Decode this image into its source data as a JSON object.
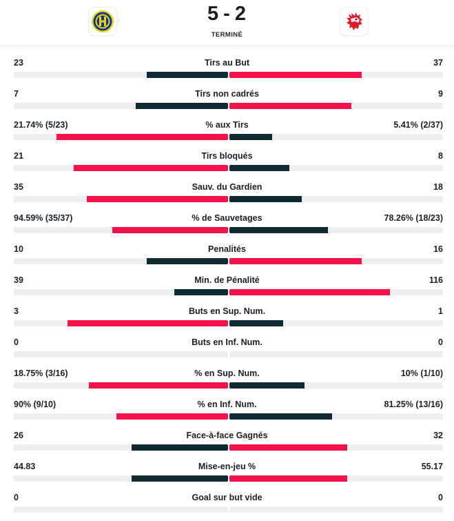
{
  "match": {
    "home_score": "5",
    "separator": "-",
    "away_score": "2",
    "status": "TERMINÉ"
  },
  "colors": {
    "leader": "#f5114a",
    "other": "#0f2a33",
    "track": "#eceef0"
  },
  "stats": [
    {
      "label": "Tirs au But",
      "home": "23",
      "away": "37",
      "home_fill": 0.38,
      "away_fill": 0.62,
      "home_leads": false
    },
    {
      "label": "Tirs non cadrés",
      "home": "7",
      "away": "9",
      "home_fill": 0.43,
      "away_fill": 0.57,
      "home_leads": false
    },
    {
      "label": "% aux Tirs",
      "home": "21.74% (5/23)",
      "away": "5.41% (2/37)",
      "home_fill": 0.8,
      "away_fill": 0.2,
      "home_leads": true
    },
    {
      "label": "Tirs bloqués",
      "home": "21",
      "away": "8",
      "home_fill": 0.72,
      "away_fill": 0.28,
      "home_leads": true
    },
    {
      "label": "Sauv. du Gardien",
      "home": "35",
      "away": "18",
      "home_fill": 0.66,
      "away_fill": 0.34,
      "home_leads": true
    },
    {
      "label": "% de Sauvetages",
      "home": "94.59% (35/37)",
      "away": "78.26% (18/23)",
      "home_fill": 0.54,
      "away_fill": 0.46,
      "home_leads": true
    },
    {
      "label": "Penalités",
      "home": "10",
      "away": "16",
      "home_fill": 0.38,
      "away_fill": 0.62,
      "home_leads": false
    },
    {
      "label": "Min. de Pénalité",
      "home": "39",
      "away": "116",
      "home_fill": 0.25,
      "away_fill": 0.75,
      "home_leads": false
    },
    {
      "label": "Buts en Sup. Num.",
      "home": "3",
      "away": "1",
      "home_fill": 0.75,
      "away_fill": 0.25,
      "home_leads": true
    },
    {
      "label": "Buts en Inf. Num.",
      "home": "0",
      "away": "0",
      "home_fill": 0,
      "away_fill": 0,
      "home_leads": true
    },
    {
      "label": "% en Sup. Num.",
      "home": "18.75% (3/16)",
      "away": "10% (1/10)",
      "home_fill": 0.65,
      "away_fill": 0.35,
      "home_leads": true
    },
    {
      "label": "% en Inf. Num.",
      "home": "90% (9/10)",
      "away": "81.25% (13/16)",
      "home_fill": 0.52,
      "away_fill": 0.48,
      "home_leads": true
    },
    {
      "label": "Face-à-face Gagnés",
      "home": "26",
      "away": "32",
      "home_fill": 0.45,
      "away_fill": 0.55,
      "home_leads": false
    },
    {
      "label": "Mise-en-jeu %",
      "home": "44.83",
      "away": "55.17",
      "home_fill": 0.45,
      "away_fill": 0.55,
      "home_leads": false
    },
    {
      "label": "Goal sur but vide",
      "home": "0",
      "away": "0",
      "home_fill": 0,
      "away_fill": 0,
      "home_leads": true
    }
  ]
}
